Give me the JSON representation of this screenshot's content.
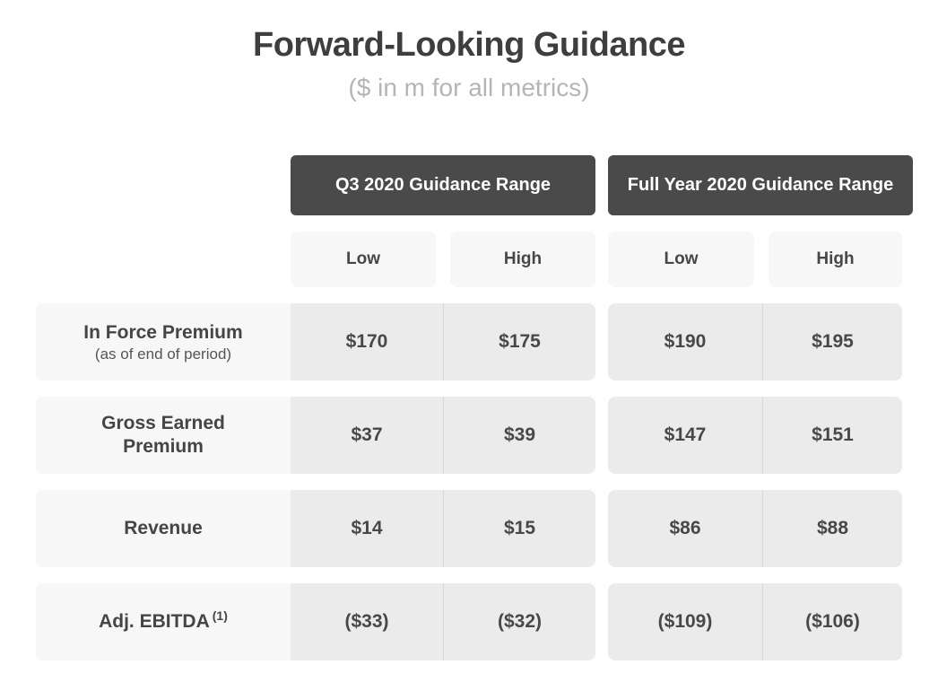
{
  "page": {
    "title": "Forward-Looking Guidance",
    "subtitle": "($ in m for all metrics)"
  },
  "table": {
    "groups": [
      {
        "label": "Q3 2020 Guidance Range"
      },
      {
        "label": "Full Year 2020 Guidance Range"
      }
    ],
    "subheaders": {
      "low": "Low",
      "high": "High"
    },
    "rows": [
      {
        "label": "In Force Premium",
        "sublabel": "(as of end of period)",
        "values": {
          "q3_low": "$170",
          "q3_high": "$175",
          "fy_low": "$190",
          "fy_high": "$195"
        }
      },
      {
        "label": "Gross Earned Premium",
        "values": {
          "q3_low": "$37",
          "q3_high": "$39",
          "fy_low": "$147",
          "fy_high": "$151"
        }
      },
      {
        "label": "Revenue",
        "values": {
          "q3_low": "$14",
          "q3_high": "$15",
          "fy_low": "$86",
          "fy_high": "$88"
        }
      },
      {
        "label": "Adj. EBITDA",
        "footnote": "(1)",
        "values": {
          "q3_low": "($33)",
          "q3_high": "($32)",
          "fy_low": "($109)",
          "fy_high": "($106)"
        }
      }
    ]
  },
  "chart_data": {
    "type": "table",
    "title": "Forward-Looking Guidance",
    "subtitle": "($ in m for all metrics)",
    "column_groups": [
      "Q3 2020 Guidance Range",
      "Full Year 2020 Guidance Range"
    ],
    "columns": [
      "Q3 2020 Low",
      "Q3 2020 High",
      "Full Year 2020 Low",
      "Full Year 2020 High"
    ],
    "row_labels": [
      "In Force Premium (as of end of period)",
      "Gross Earned Premium",
      "Revenue",
      "Adj. EBITDA (1)"
    ],
    "values": [
      [
        170,
        175,
        190,
        195
      ],
      [
        37,
        39,
        147,
        151
      ],
      [
        14,
        15,
        86,
        88
      ],
      [
        -33,
        -32,
        -109,
        -106
      ]
    ]
  },
  "colors": {
    "header_pill_bg": "#4a4a4a",
    "header_pill_text": "#ffffff",
    "subheader_cell_bg": "#f7f7f7",
    "label_cell_bg": "#f7f7f7",
    "value_cell_bg": "#ebebeb",
    "divider": "#d8d8d8",
    "title_text": "#3e3e3e",
    "subtitle_text": "#b5b5b5",
    "body_text": "#484848"
  }
}
